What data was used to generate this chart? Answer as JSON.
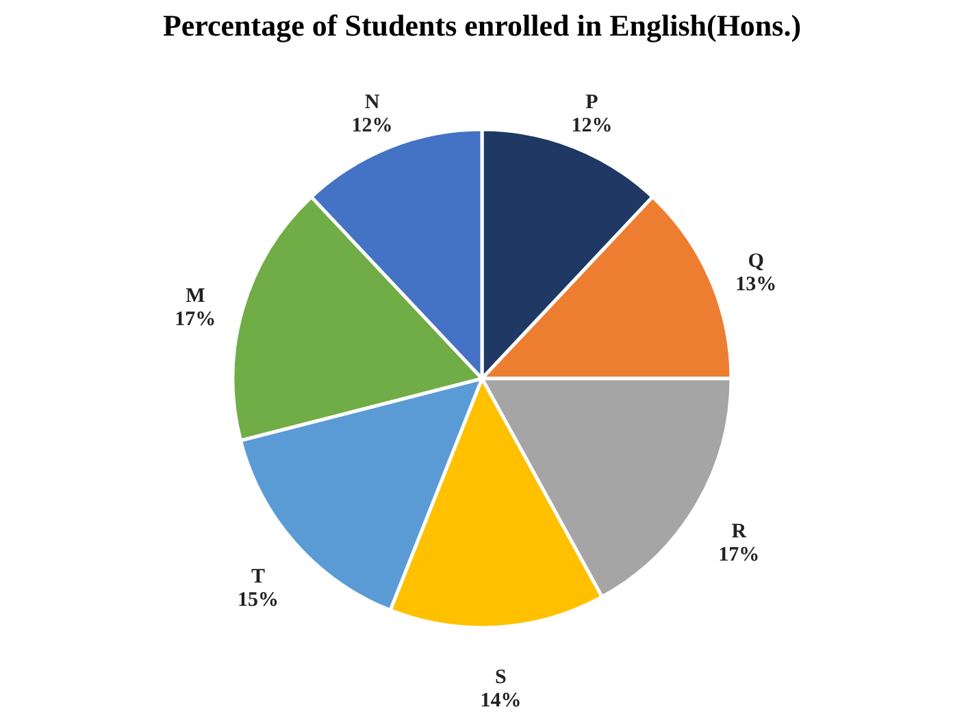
{
  "chart_data": {
    "type": "pie",
    "title": "Percentage of Students enrolled in English(Hons.)",
    "categories": [
      "P",
      "Q",
      "R",
      "S",
      "T",
      "M",
      "N"
    ],
    "values": [
      12,
      13,
      17,
      14,
      15,
      17,
      12
    ],
    "value_labels": [
      "12%",
      "13%",
      "17%",
      "14%",
      "15%",
      "17%",
      "12%"
    ],
    "colors": [
      "#1f3864",
      "#ed7d31",
      "#a5a5a5",
      "#ffc000",
      "#5b9bd5",
      "#70ad47",
      "#4472c4"
    ],
    "legend": false
  }
}
